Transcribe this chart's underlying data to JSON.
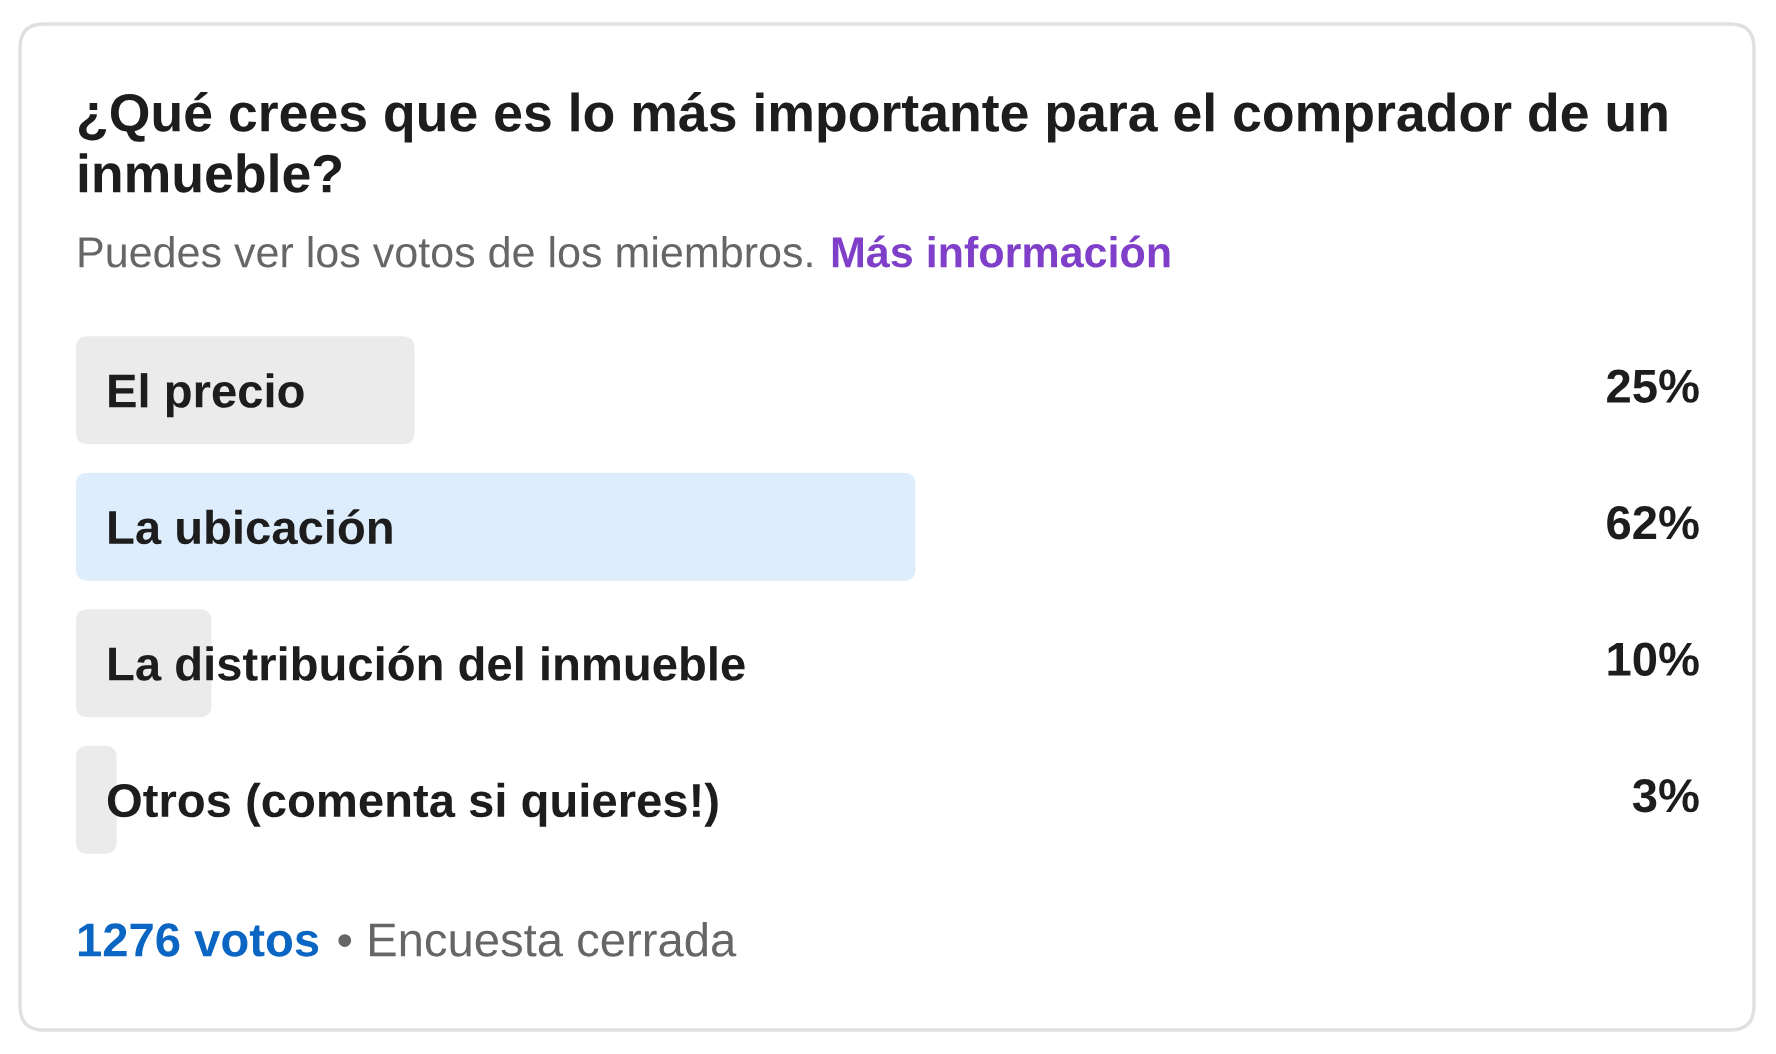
{
  "chart_data": {
    "type": "bar",
    "orientation": "horizontal",
    "title": "¿Qué crees que es lo más importante para el comprador de un inmueble?",
    "subtitle": "Puedes ver los votos de los miembros.",
    "categories": [
      "El precio",
      "La ubicación",
      "La distribución del inmueble",
      "Otros (comenta si quieres!)"
    ],
    "values": [
      25,
      62,
      10,
      3
    ],
    "colors": [
      "#ebebeb",
      "#deedfb",
      "#ebebeb",
      "#ebebeb"
    ],
    "value_labels": [
      "25%",
      "62%",
      "10%",
      "3%"
    ],
    "tick_labels": "y",
    "annotations": [
      "Más información",
      "1276 votos",
      "• Encuesta cerrada"
    ]
  }
}
